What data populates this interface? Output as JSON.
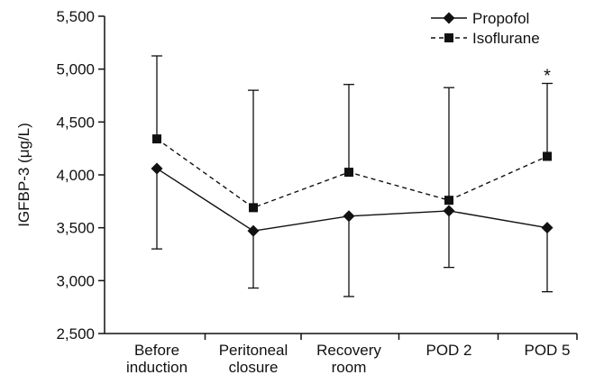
{
  "chart_data": {
    "type": "line",
    "title": "",
    "xlabel": "",
    "ylabel": "IGFBP-3 (μg/L)",
    "ylim": [
      2500,
      5500
    ],
    "yticks": [
      2500,
      3000,
      3500,
      4000,
      4500,
      5000,
      5500
    ],
    "ytick_labels": [
      "2,500",
      "3,000",
      "3,500",
      "4,000",
      "4,500",
      "5,000",
      "5,500"
    ],
    "categories": [
      [
        "Before",
        "induction"
      ],
      [
        "Peritoneal",
        "closure"
      ],
      [
        "Recovery",
        "room"
      ],
      [
        "POD 2"
      ],
      [
        "POD 5"
      ]
    ],
    "series": [
      {
        "name": "Propofol",
        "marker": "diamond",
        "line_style": "solid",
        "error_direction": "down",
        "values": [
          4060,
          3470,
          3610,
          3660,
          3500
        ],
        "error_ends": [
          3300,
          2930,
          2850,
          3125,
          2895
        ]
      },
      {
        "name": "Isoflurane",
        "marker": "square",
        "line_style": "dashed",
        "error_direction": "up",
        "values": [
          4340,
          3690,
          4025,
          3760,
          4175
        ],
        "error_ends": [
          5125,
          4800,
          4855,
          4825,
          4865
        ]
      }
    ],
    "annotations": [
      {
        "text": "*",
        "category_index": 4,
        "value": 4865
      }
    ],
    "legend_position": "top-right",
    "grid": false
  }
}
